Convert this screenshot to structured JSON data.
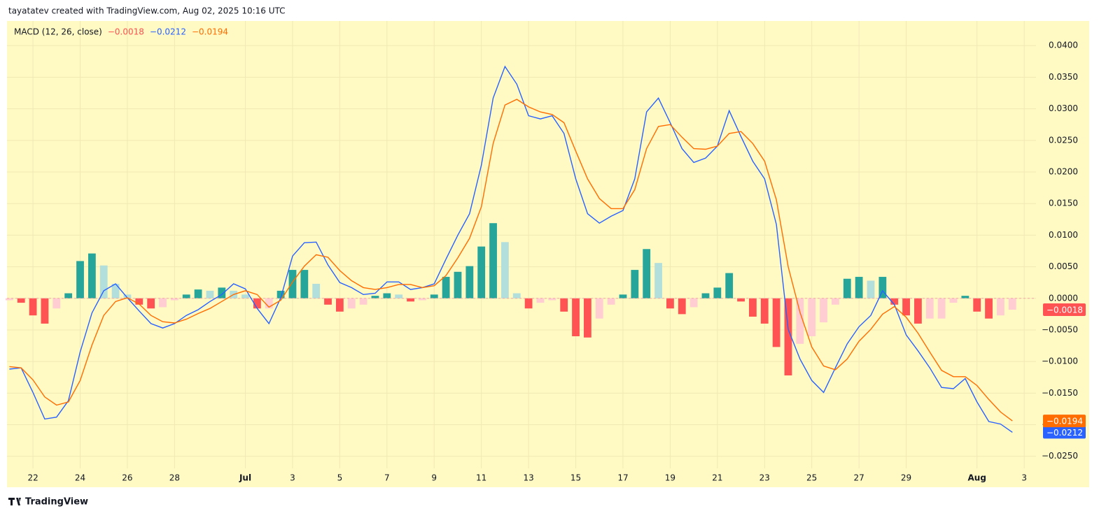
{
  "header": "tayatatev created with TradingView.com, Aug 02, 2025 10:16 UTC",
  "footer": "TradingView",
  "chart_data": {
    "type": "macd",
    "title": "MACD (12, 26, close)",
    "x": [
      21,
      21.5,
      22,
      22.5,
      23,
      23.5,
      24,
      24.5,
      25,
      25.5,
      26,
      26.5,
      27,
      27.5,
      28,
      28.5,
      29,
      29.5,
      30,
      30.5,
      31,
      31.5,
      32,
      32.5,
      33,
      33.5,
      34,
      34.5,
      35,
      35.5,
      36,
      36.5,
      37,
      37.5,
      38,
      38.5,
      39,
      39.5,
      40,
      40.5,
      41,
      41.5,
      42,
      42.5,
      43,
      43.5,
      44,
      44.5,
      45,
      45.5,
      46,
      46.5,
      47,
      47.5,
      48,
      48.5,
      49,
      49.5,
      50,
      50.5,
      51,
      51.5,
      52,
      52.5,
      53,
      53.5,
      54,
      54.5,
      55,
      55.5,
      56,
      56.5,
      57,
      57.5,
      58,
      58.5,
      59,
      59.5,
      60,
      60.5,
      61,
      61.5,
      62,
      62.5,
      63,
      63.5
    ],
    "xlim": [
      20.9,
      64.5
    ],
    "xticks": [
      {
        "value": 22,
        "label": "22"
      },
      {
        "value": 24,
        "label": "24"
      },
      {
        "value": 26,
        "label": "26"
      },
      {
        "value": 28,
        "label": "28"
      },
      {
        "value": 31,
        "label": "Jul"
      },
      {
        "value": 33,
        "label": "3"
      },
      {
        "value": 35,
        "label": "5"
      },
      {
        "value": 37,
        "label": "7"
      },
      {
        "value": 39,
        "label": "9"
      },
      {
        "value": 41,
        "label": "11"
      },
      {
        "value": 43,
        "label": "13"
      },
      {
        "value": 45,
        "label": "15"
      },
      {
        "value": 47,
        "label": "17"
      },
      {
        "value": 49,
        "label": "19"
      },
      {
        "value": 51,
        "label": "21"
      },
      {
        "value": 53,
        "label": "23"
      },
      {
        "value": 55,
        "label": "25"
      },
      {
        "value": 57,
        "label": "27"
      },
      {
        "value": 59,
        "label": "29"
      },
      {
        "value": 62,
        "label": "Aug"
      },
      {
        "value": 64,
        "label": "3"
      }
    ],
    "ylim": [
      -0.0299,
      0.0439
    ],
    "yticks": [
      {
        "value": 0.04,
        "label": "0.0400"
      },
      {
        "value": 0.035,
        "label": "0.0350"
      },
      {
        "value": 0.03,
        "label": "0.0300"
      },
      {
        "value": 0.025,
        "label": "0.0250"
      },
      {
        "value": 0.02,
        "label": "0.0200"
      },
      {
        "value": 0.015,
        "label": "0.0150"
      },
      {
        "value": 0.01,
        "label": "0.0100"
      },
      {
        "value": 0.005,
        "label": "0.0050"
      },
      {
        "value": 0,
        "label": "0.0000"
      },
      {
        "value": -0.005,
        "label": "−0.0050"
      },
      {
        "value": -0.01,
        "label": "−0.0100"
      },
      {
        "value": -0.015,
        "label": "−0.0150"
      },
      {
        "value": -0.02,
        "label": "−0.0200"
      },
      {
        "value": -0.025,
        "label": "−0.0250"
      }
    ],
    "grid": true,
    "series": [
      {
        "kind": "histogram",
        "color": "#ff5252",
        "colors": [
          "#26a69a",
          "#b2dfdb",
          "#ff5252",
          "#ffcdd2"
        ],
        "last_label": "−0.0018",
        "values": [
          -0.0003,
          -0.0007,
          -0.0027,
          -0.004,
          -0.0016,
          0.0008,
          0.0059,
          0.0071,
          0.0052,
          0.0023,
          0.0006,
          -0.001,
          -0.0016,
          -0.0014,
          -0.0003,
          0.0006,
          0.0014,
          0.0012,
          0.0017,
          0.0012,
          0.0006,
          -0.0016,
          -0.0016,
          0.0012,
          0.0045,
          0.0045,
          0.0023,
          -0.001,
          -0.0021,
          -0.0016,
          -0.001,
          0.0004,
          0.0008,
          0.0006,
          -0.0005,
          -0.0003,
          0.0006,
          0.0034,
          0.0042,
          0.0051,
          0.0082,
          0.0119,
          0.0089,
          0.0008,
          -0.0016,
          -0.0007,
          -0.0003,
          -0.0021,
          -0.006,
          -0.0062,
          -0.0032,
          -0.001,
          0.0006,
          0.0045,
          0.0078,
          0.0056,
          -0.0016,
          -0.0025,
          -0.0014,
          0.0008,
          0.0017,
          0.004,
          -0.0005,
          -0.0029,
          -0.004,
          -0.0077,
          -0.0122,
          -0.0072,
          -0.006,
          -0.0038,
          -0.001,
          0.0031,
          0.0034,
          0.0028,
          0.0034,
          -0.001,
          -0.0027,
          -0.004,
          -0.0032,
          -0.0032,
          -0.0007,
          0.0004,
          -0.0021,
          -0.0032,
          -0.0027,
          -0.0018
        ]
      },
      {
        "kind": "line",
        "color": "#2962ff",
        "last_label": "−0.0212",
        "values": [
          -0.0112,
          -0.011,
          -0.0149,
          -0.0191,
          -0.0188,
          -0.0162,
          -0.0085,
          -0.0023,
          0.0012,
          0.0023,
          0.0001,
          -0.002,
          -0.004,
          -0.0047,
          -0.004,
          -0.0027,
          -0.0018,
          -0.0005,
          0.0006,
          0.0023,
          0.0015,
          -0.0016,
          -0.004,
          0.0001,
          0.0067,
          0.0088,
          0.0089,
          0.0053,
          0.0025,
          0.0017,
          0.0006,
          0.0008,
          0.0026,
          0.0026,
          0.0014,
          0.0017,
          0.0023,
          0.0062,
          0.01,
          0.0134,
          0.0211,
          0.0317,
          0.0367,
          0.0339,
          0.0289,
          0.0284,
          0.0289,
          0.0261,
          0.0189,
          0.0134,
          0.0119,
          0.013,
          0.0139,
          0.0189,
          0.0295,
          0.0317,
          0.0278,
          0.0237,
          0.0215,
          0.0222,
          0.0241,
          0.0297,
          0.0256,
          0.0217,
          0.0189,
          0.0117,
          -0.0049,
          -0.0096,
          -0.013,
          -0.0149,
          -0.011,
          -0.0072,
          -0.0045,
          -0.0027,
          0.0012,
          -0.001,
          -0.0058,
          -0.0083,
          -0.011,
          -0.0141,
          -0.0143,
          -0.0127,
          -0.0164,
          -0.0195,
          -0.0199,
          -0.0212
        ]
      },
      {
        "kind": "line",
        "color": "#ff6d00",
        "last_label": "−0.0194",
        "values": [
          -0.0108,
          -0.011,
          -0.0129,
          -0.0156,
          -0.0169,
          -0.0164,
          -0.013,
          -0.0074,
          -0.0027,
          -0.0005,
          0.0001,
          -0.0009,
          -0.0027,
          -0.0037,
          -0.0039,
          -0.0033,
          -0.0024,
          -0.0016,
          -0.0005,
          0.0006,
          0.0012,
          0.0006,
          -0.0014,
          -0.0003,
          0.0026,
          0.0051,
          0.0069,
          0.0065,
          0.0044,
          0.0028,
          0.0017,
          0.0014,
          0.0017,
          0.0022,
          0.0022,
          0.0017,
          0.002,
          0.0036,
          0.0064,
          0.0095,
          0.0145,
          0.0245,
          0.0306,
          0.0315,
          0.0303,
          0.0295,
          0.0291,
          0.0278,
          0.0233,
          0.0189,
          0.0158,
          0.0142,
          0.0142,
          0.0172,
          0.0237,
          0.0272,
          0.0275,
          0.0255,
          0.0237,
          0.0236,
          0.0241,
          0.0261,
          0.0264,
          0.0245,
          0.0217,
          0.0156,
          0.005,
          -0.0022,
          -0.0077,
          -0.0107,
          -0.0113,
          -0.0096,
          -0.0068,
          -0.0049,
          -0.0025,
          -0.0013,
          -0.003,
          -0.0055,
          -0.0085,
          -0.0114,
          -0.0124,
          -0.0124,
          -0.0138,
          -0.016,
          -0.018,
          -0.0194
        ]
      }
    ]
  }
}
